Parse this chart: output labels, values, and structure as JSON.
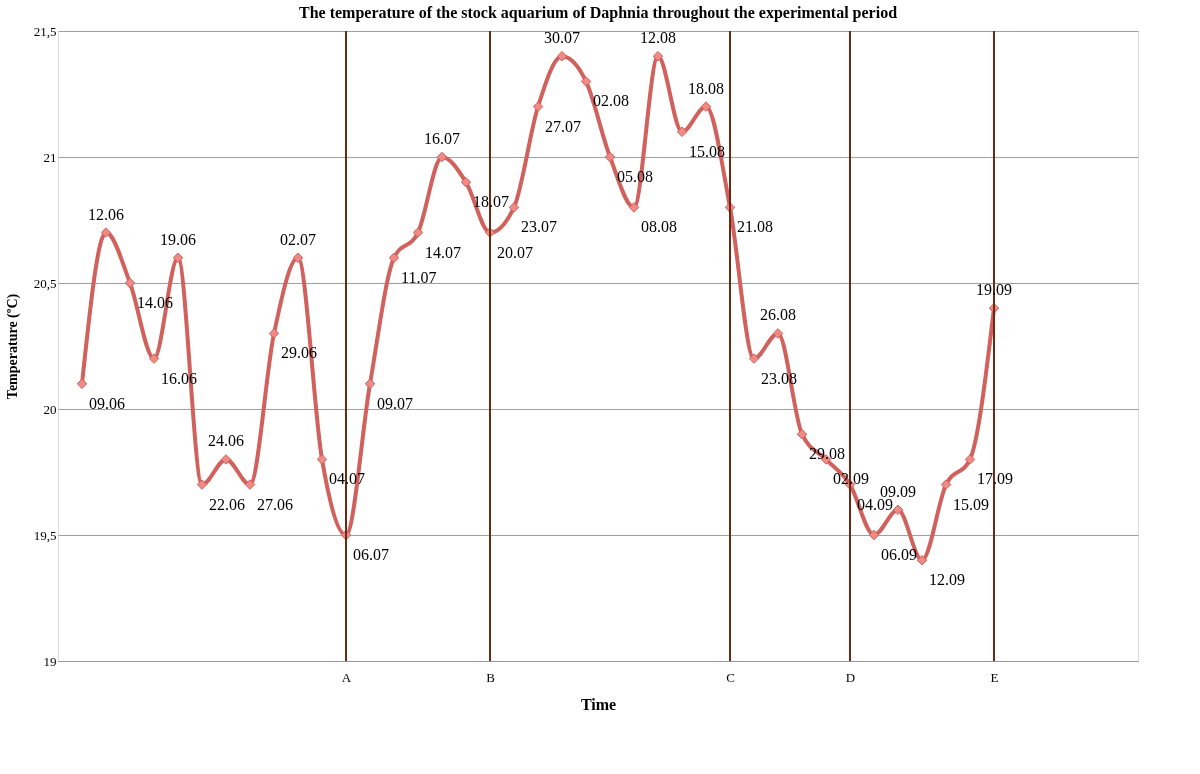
{
  "chart_data": {
    "type": "line",
    "title": "The temperature of the stock aquarium of Daphnia throughout the experimental period",
    "xlabel": "Time",
    "ylabel": "Temperature (ºC)",
    "categories": [
      null,
      null,
      null,
      null,
      null,
      null,
      null,
      null,
      null,
      null,
      null,
      "A",
      null,
      null,
      null,
      null,
      null,
      "B",
      null,
      null,
      null,
      null,
      null,
      null,
      null,
      null,
      null,
      "C",
      null,
      null,
      null,
      null,
      "D",
      null,
      null,
      null,
      null,
      null,
      "E",
      null,
      null,
      null,
      null,
      null
    ],
    "series": [
      {
        "color": "#d0615c",
        "values": [
          20.1,
          20.7,
          20.5,
          20.2,
          20.6,
          19.7,
          19.8,
          19.7,
          20.3,
          20.6,
          19.8,
          19.5,
          20.1,
          20.6,
          20.7,
          21.0,
          20.9,
          20.7,
          20.8,
          21.2,
          21.4,
          21.3,
          21.0,
          20.8,
          21.4,
          21.1,
          21.2,
          20.8,
          20.2,
          20.3,
          19.9,
          19.8,
          19.7,
          19.5,
          19.6,
          19.4,
          19.7,
          19.8,
          20.4,
          null,
          null,
          null,
          null,
          null
        ]
      }
    ],
    "ylim": [
      19,
      21.5
    ],
    "yticks": [
      {
        "value": 19,
        "label": "19"
      },
      {
        "value": 19.5,
        "label": "19,5"
      },
      {
        "value": 20,
        "label": "20"
      },
      {
        "value": 20.5,
        "label": "20,5"
      },
      {
        "value": 21,
        "label": "21"
      },
      {
        "value": 21.5,
        "label": "21,5"
      }
    ],
    "ref_lines": [
      {
        "axis": "x",
        "value": "A",
        "color": "#6b2a12"
      },
      {
        "axis": "x",
        "value": "B",
        "color": "#6b2a12"
      },
      {
        "axis": "x",
        "value": "C",
        "color": "#6b2a12"
      },
      {
        "axis": "x",
        "value": "D",
        "color": "#6b2a12"
      },
      {
        "axis": "x",
        "value": "E",
        "color": "#6b2a12"
      }
    ],
    "annotations": [
      "09.06",
      "12.06",
      "14.06",
      "16.06",
      "19.06",
      "22.06",
      "24.06",
      "27.06",
      "29.06",
      "02.07",
      "04.07",
      "06.07",
      "09.07",
      "11.07",
      "14.07",
      "16.07",
      "18.07",
      "20.07",
      "23.07",
      "27.07",
      "30.07",
      "02.08",
      "05.08",
      "08.08",
      "12.08",
      "15.08",
      "18.08",
      "21.08",
      "23.08",
      "26.08",
      "29.08",
      "02.09",
      "04.09",
      "06.09",
      "09.09",
      "12.09",
      "15.09",
      "17.09",
      "19.09"
    ],
    "grid": "y",
    "marker": "diamond",
    "line_style": "solid"
  }
}
